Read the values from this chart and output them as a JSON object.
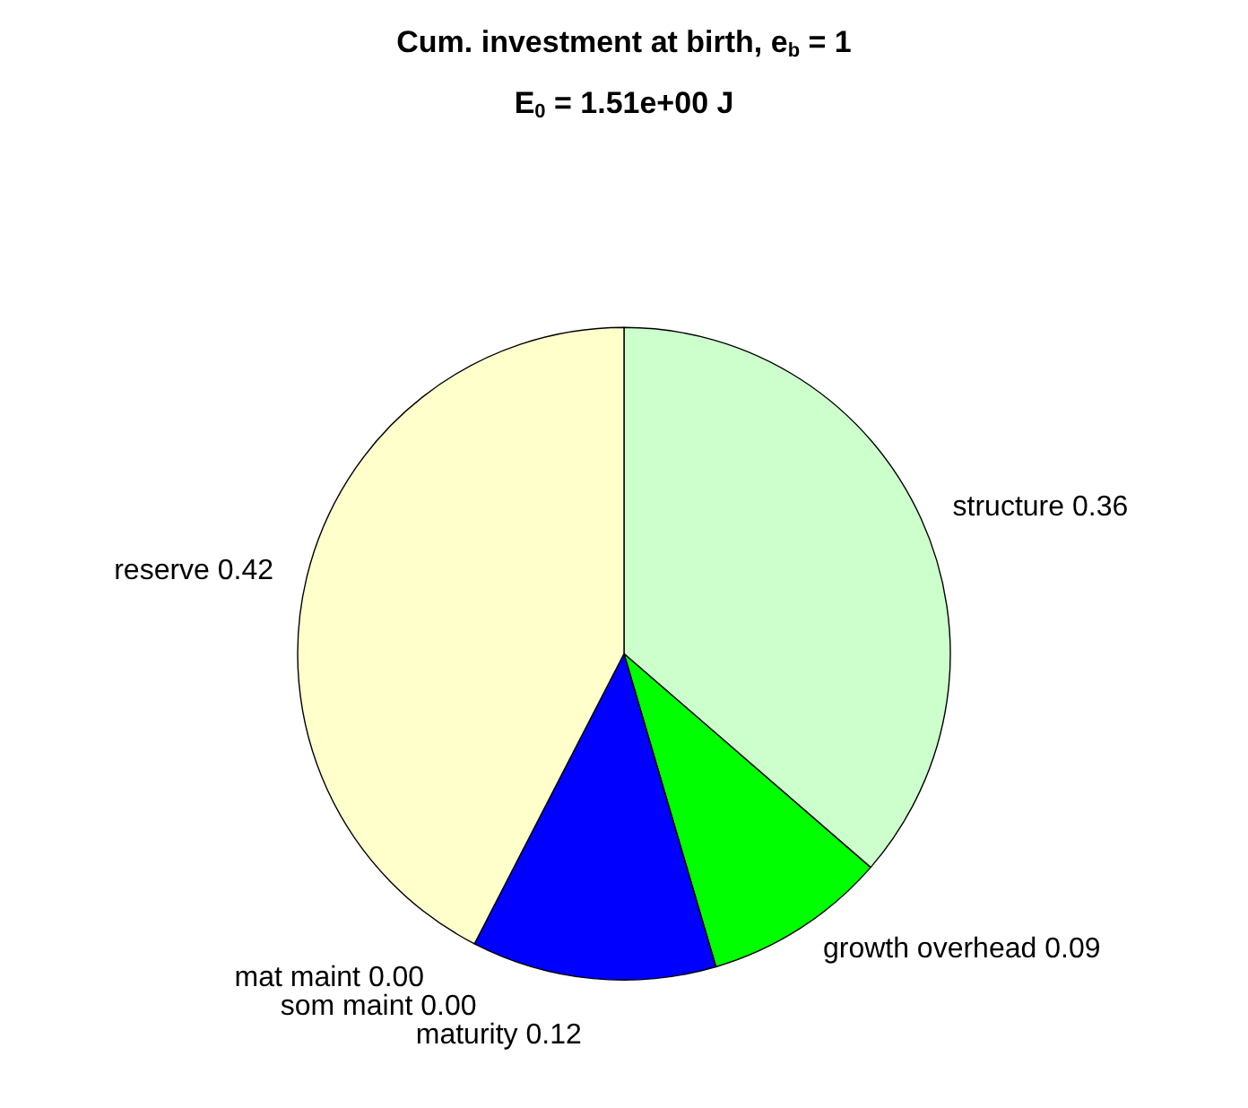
{
  "chart_data": {
    "type": "pie",
    "title": "Cum. investment at birth, e$_{b}$ = 1",
    "subtitle": "E$_{0}$ = 1.51e+00 J",
    "categories": [
      "structure",
      "growth overhead",
      "maturity",
      "mat maint",
      "som maint",
      "reserve"
    ],
    "values": [
      0.36,
      0.09,
      0.12,
      0,
      0,
      0.42
    ],
    "value_labels": [
      "0.36",
      "0.09",
      "0.12",
      "0.00",
      "0.00",
      "0.42"
    ],
    "colors": [
      "#ccffcc",
      "#00ff00",
      "#0000ff",
      "#ff0000",
      "#ff0000",
      "#ffffcc"
    ],
    "legend": false
  }
}
